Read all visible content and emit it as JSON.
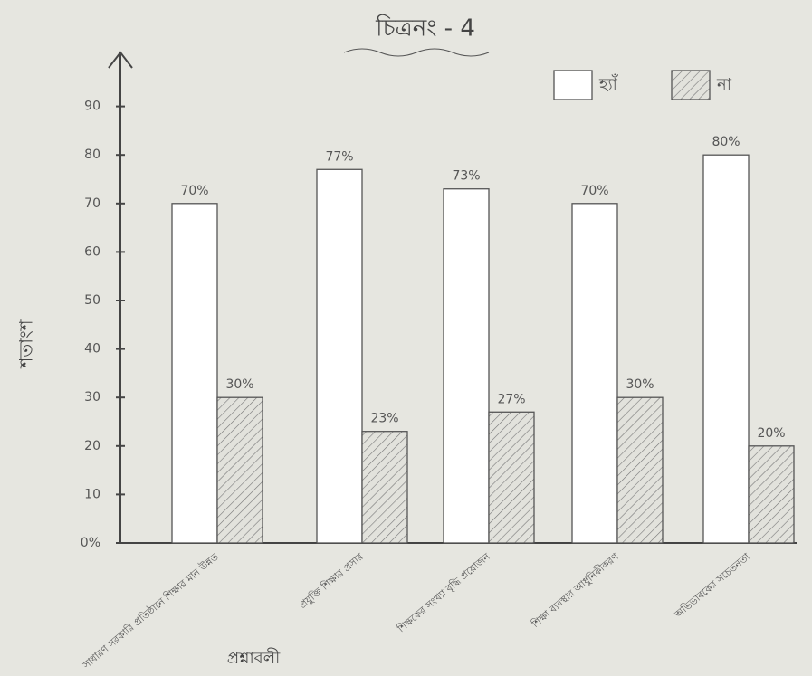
{
  "chart_data": {
    "type": "bar",
    "title": "চিত্রনং - 4",
    "y_label": "শতাংশ",
    "x_label": "প্রশ্নাবলী",
    "categories": [
      "সাধারণ সরকারি প্রতিষ্ঠানে শিক্ষার মান উন্নত",
      "প্রযুক্তি শিক্ষার প্রসার",
      "শিক্ষকের সংখ্যা বৃদ্ধি প্রয়োজন",
      "শিক্ষা ব্যবস্থার আধুনিকীকরণ",
      "অভিভাবকের সচেতনতা"
    ],
    "series": [
      {
        "name": "হ্যাঁ",
        "color": "#ffffff",
        "values": [
          70,
          77,
          73,
          70,
          80
        ],
        "value_labels": [
          "70%",
          "77%",
          "73%",
          "70%",
          "80%"
        ]
      },
      {
        "name": "না",
        "color": "#777777",
        "hatch": true,
        "values": [
          30,
          23,
          27,
          30,
          20
        ],
        "value_labels": [
          "30%",
          "23%",
          "27%",
          "30%",
          "20%"
        ]
      }
    ],
    "ylim": [
      0,
      100
    ],
    "yticks": [
      {
        "value": 0,
        "label": "0%"
      },
      10,
      20,
      30,
      40,
      50,
      60,
      70,
      80,
      90
    ],
    "legend": "top-right"
  }
}
